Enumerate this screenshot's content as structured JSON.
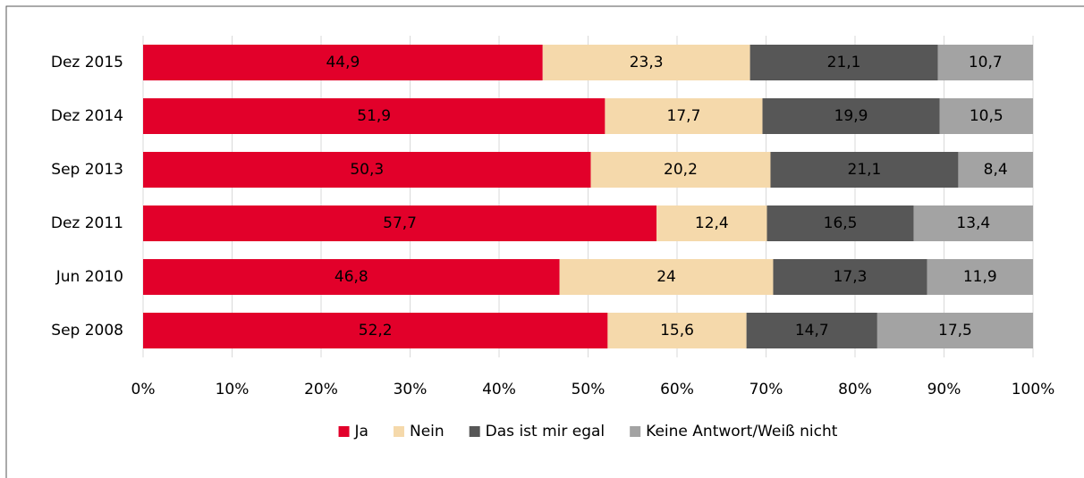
{
  "chart_data": {
    "type": "stacked_barh",
    "categories": [
      "Dez 2015",
      "Dez 2014",
      "Sep 2013",
      "Dez 2011",
      "Jun 2010",
      "Sep 2008"
    ],
    "series": [
      {
        "name": "Ja",
        "color": "#e2002a",
        "label_color": "#ffffff",
        "values": [
          44.9,
          51.9,
          50.3,
          57.7,
          46.8,
          52.2
        ],
        "value_labels": [
          "44,9",
          "51,9",
          "50,3",
          "57,7",
          "46,8",
          "52,2"
        ]
      },
      {
        "name": "Nein",
        "color": "#f5d9ab",
        "label_color": "#000000",
        "values": [
          23.3,
          17.7,
          20.2,
          12.4,
          24,
          15.6
        ],
        "value_labels": [
          "23,3",
          "17,7",
          "20,2",
          "12,4",
          "24",
          "15,6"
        ]
      },
      {
        "name": "Das ist mir egal",
        "color": "#575757",
        "label_color": "#ffffff",
        "values": [
          21.1,
          19.9,
          21.1,
          16.5,
          17.3,
          14.7
        ],
        "value_labels": [
          "21,1",
          "19,9",
          "21,1",
          "16,5",
          "17,3",
          "14,7"
        ]
      },
      {
        "name": "Keine Antwort/Weiß nicht",
        "color": "#a3a3a3",
        "label_color": "#000000",
        "values": [
          10.7,
          10.5,
          8.4,
          13.4,
          11.9,
          17.5
        ],
        "value_labels": [
          "10,7",
          "10,5",
          "8,4",
          "13,4",
          "11,9",
          "17,5"
        ]
      }
    ],
    "xlim": [
      0,
      100
    ],
    "xticks": [
      {
        "value": 0,
        "label": "0%"
      },
      {
        "value": 10,
        "label": "10%"
      },
      {
        "value": 20,
        "label": "20%"
      },
      {
        "value": 30,
        "label": "30%"
      },
      {
        "value": 40,
        "label": "40%"
      },
      {
        "value": 50,
        "label": "50%"
      },
      {
        "value": 60,
        "label": "60%"
      },
      {
        "value": 70,
        "label": "70%"
      },
      {
        "value": 80,
        "label": "80%"
      },
      {
        "value": 90,
        "label": "90%"
      },
      {
        "value": 100,
        "label": "100%"
      }
    ],
    "grid": true,
    "legend": "bottom"
  }
}
